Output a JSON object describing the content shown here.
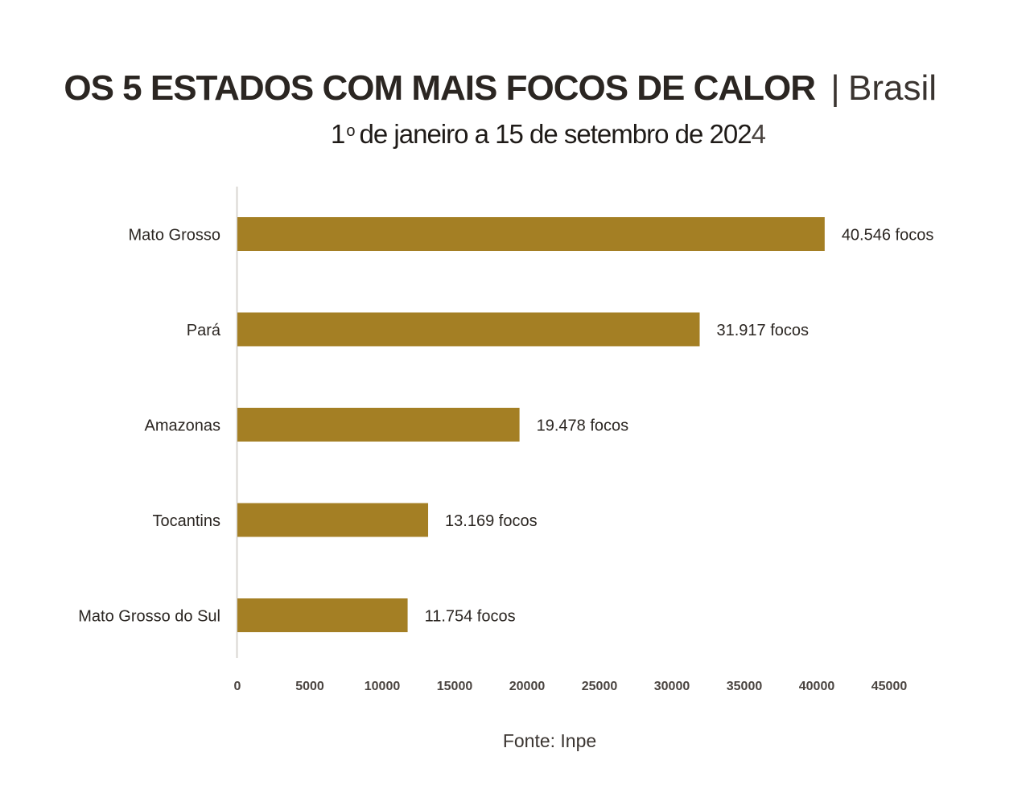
{
  "title": {
    "main": "OS 5 ESTADOS COM MAIS FOCOS DE CALOR",
    "separator": "|",
    "region": "Brasil"
  },
  "subtitle": {
    "prefix": "1",
    "ordinal": "o",
    "text": "de janeiro a 15 de setembro de 202",
    "tail": "4"
  },
  "source": "Fonte: Inpe",
  "chart_data": {
    "type": "bar",
    "orientation": "horizontal",
    "categories": [
      "Mato Grosso",
      "Pará",
      "Amazonas",
      "Tocantins",
      "Mato Grosso do Sul"
    ],
    "values": [
      40546,
      31917,
      19478,
      13169,
      11754
    ],
    "data_labels": [
      "40.546 focos",
      "31.917 focos",
      "19.478 focos",
      "13.169 focos",
      "11.754 focos"
    ],
    "xticks": [
      "0",
      "5000",
      "10000",
      "15000",
      "20000",
      "25000",
      "30000",
      "35000",
      "40000",
      "45000"
    ],
    "xlim": [
      0,
      45000
    ],
    "grid": false,
    "legend": "none",
    "colors": {
      "bar": "#a47f24",
      "axis": "#d9d6d2",
      "label": "#2b2622",
      "tick": "#4a4440"
    }
  }
}
